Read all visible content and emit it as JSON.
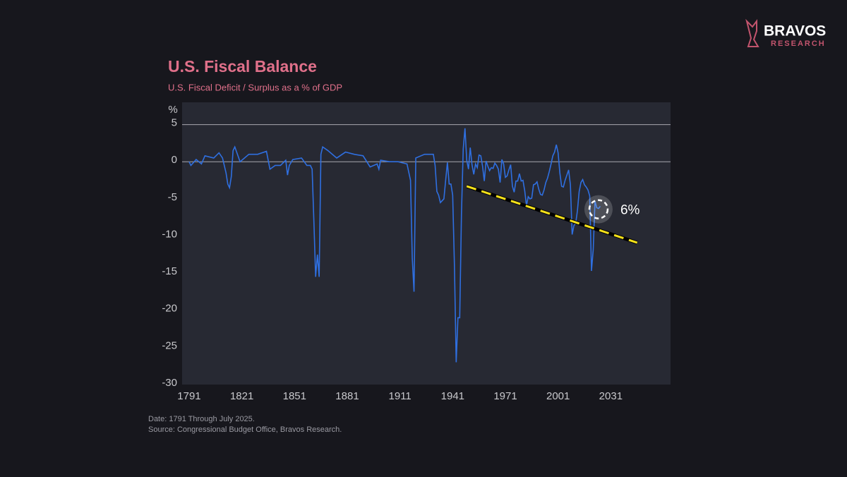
{
  "brand": {
    "name": "BRAVOS",
    "sub": "RESEARCH"
  },
  "chart_data": {
    "type": "line",
    "title": "U.S. Fiscal Balance",
    "subtitle": "U.S. Fiscal Deficit / Surplus as a % of GDP",
    "y_label": "%",
    "x": [
      1791,
      1792,
      1795,
      1798,
      1800,
      1805,
      1808,
      1810,
      1812,
      1813,
      1814,
      1815,
      1816,
      1817,
      1820,
      1825,
      1830,
      1835,
      1837,
      1840,
      1843,
      1846,
      1847,
      1848,
      1850,
      1855,
      1858,
      1860,
      1861,
      1862,
      1863,
      1864,
      1865,
      1866,
      1867,
      1870,
      1875,
      1880,
      1885,
      1890,
      1894,
      1898,
      1899,
      1900,
      1905,
      1910,
      1915,
      1917,
      1918,
      1919,
      1920,
      1925,
      1930,
      1931,
      1932,
      1933,
      1934,
      1936,
      1937,
      1938,
      1939,
      1940,
      1941,
      1942,
      1943,
      1944,
      1945,
      1946,
      1947,
      1948,
      1949,
      1950,
      1951,
      1952,
      1953,
      1954,
      1955,
      1956,
      1957,
      1958,
      1959,
      1960,
      1961,
      1962,
      1963,
      1964,
      1965,
      1966,
      1967,
      1968,
      1969,
      1970,
      1971,
      1972,
      1973,
      1974,
      1975,
      1976,
      1977,
      1978,
      1979,
      1980,
      1981,
      1982,
      1983,
      1984,
      1985,
      1986,
      1987,
      1988,
      1989,
      1990,
      1991,
      1992,
      1993,
      1994,
      1995,
      1996,
      1997,
      1998,
      1999,
      2000,
      2001,
      2002,
      2003,
      2004,
      2005,
      2006,
      2007,
      2008,
      2009,
      2010,
      2011,
      2012,
      2013,
      2014,
      2015,
      2016,
      2017,
      2018,
      2019,
      2020,
      2021,
      2022,
      2023,
      2024,
      2025
    ],
    "series": [
      {
        "name": "Fiscal Balance",
        "color": "#2f6fe0",
        "values": [
          0,
          -0.5,
          0.3,
          -0.3,
          0.8,
          0.5,
          1.2,
          0.5,
          -1.5,
          -3,
          -3.5,
          -2,
          1.5,
          2.0,
          0,
          1,
          1,
          1.4,
          -1,
          -0.5,
          -0.5,
          0.2,
          -1.8,
          -0.5,
          0.3,
          0.5,
          -0.5,
          -0.5,
          -1,
          -8,
          -15.5,
          -12.5,
          -15.5,
          1,
          2,
          1.5,
          0.5,
          1.3,
          1,
          0.8,
          -0.7,
          -0.3,
          -1,
          0.2,
          0,
          0,
          -0.3,
          -2.5,
          -13,
          -17.5,
          0.5,
          1,
          1,
          -0.5,
          -4,
          -4.5,
          -5.5,
          -5,
          -2.5,
          -0.1,
          -3,
          -3,
          -4.5,
          -14,
          -27,
          -21,
          -21,
          -7,
          1.7,
          4.5,
          0.2,
          -1,
          1.9,
          -0.4,
          -1.7,
          -0.3,
          -0.8,
          0.9,
          0.8,
          -0.6,
          -2.6,
          0.1,
          -0.6,
          -1.2,
          -0.8,
          -0.9,
          -0.2,
          -0.5,
          -1.0,
          -2.8,
          0.3,
          -0.3,
          -2.1,
          -1.9,
          -1.1,
          -0.4,
          -3.3,
          -4.1,
          -2.6,
          -2.6,
          -1.6,
          -2.6,
          -2.5,
          -3.9,
          -5.9,
          -4.7,
          -5.0,
          -4.9,
          -3.1,
          -3.0,
          -2.7,
          -3.7,
          -4.4,
          -4.5,
          -3.8,
          -2.8,
          -2.2,
          -1.3,
          -0.3,
          0.8,
          1.3,
          2.3,
          1.2,
          -1.5,
          -3.3,
          -3.4,
          -2.5,
          -1.8,
          -1.1,
          -3.1,
          -9.8,
          -8.6,
          -8.3,
          -6.6,
          -4.0,
          -2.8,
          -2.4,
          -3.1,
          -3.4,
          -3.8,
          -4.6,
          -14.7,
          -11.8,
          -5.3,
          -6.2,
          -6.3,
          -6.0
        ]
      }
    ],
    "xlim": [
      1787,
      2065
    ],
    "xticks": [
      1791,
      1821,
      1851,
      1881,
      1911,
      1941,
      1971,
      2001,
      2031
    ],
    "ylim": [
      -30,
      8
    ],
    "yticks": [
      5,
      0,
      -5,
      -10,
      -15,
      -20,
      -25,
      -30
    ],
    "reference_lines": [
      5,
      0
    ],
    "trendline": {
      "color": "#f5e11a",
      "x": [
        1949,
        2046
      ],
      "y": [
        -3.3,
        -10.9
      ]
    },
    "marker": {
      "x": 2024,
      "y": -6.4,
      "label": "6%"
    },
    "notes": [
      "Date: 1791 Through July 2025.",
      "Source: Congressional Budget Office, Bravos Research."
    ]
  }
}
